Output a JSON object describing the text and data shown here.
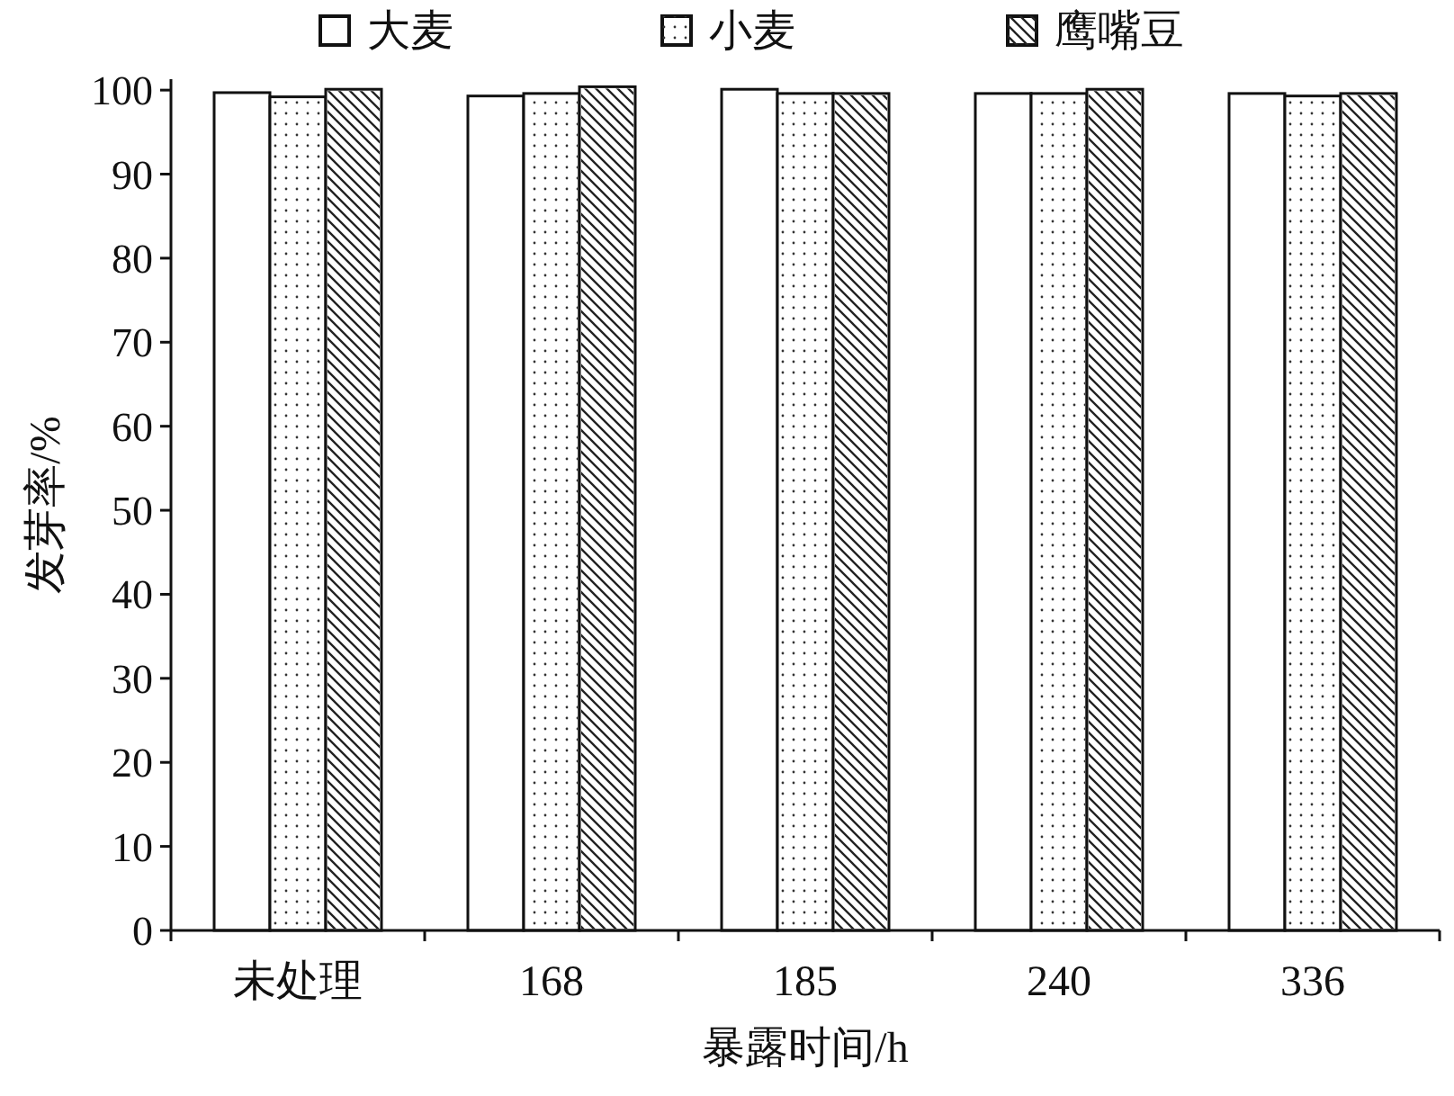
{
  "chart_data": {
    "type": "bar",
    "xlabel": "暴露时间/h",
    "ylabel": "发芽率/%",
    "categories": [
      "未处理",
      "168",
      "185",
      "240",
      "336"
    ],
    "series": [
      {
        "name": "大麦",
        "color": "#ffffff",
        "values": [
          99.7,
          99.3,
          100.1,
          99.6,
          99.6
        ]
      },
      {
        "name": "小麦",
        "color": "#ffffff",
        "values": [
          99.2,
          99.6,
          99.6,
          99.6,
          99.3
        ]
      },
      {
        "name": "鹰嘴豆",
        "color": "#ffffff",
        "values": [
          100.1,
          100.4,
          99.6,
          100.1,
          99.6
        ]
      }
    ],
    "ylim": [
      0,
      101.3
    ],
    "yticks": [
      0,
      10,
      20,
      30,
      40,
      50,
      60,
      70,
      80,
      90,
      100
    ],
    "grid": false,
    "legend": "top"
  }
}
